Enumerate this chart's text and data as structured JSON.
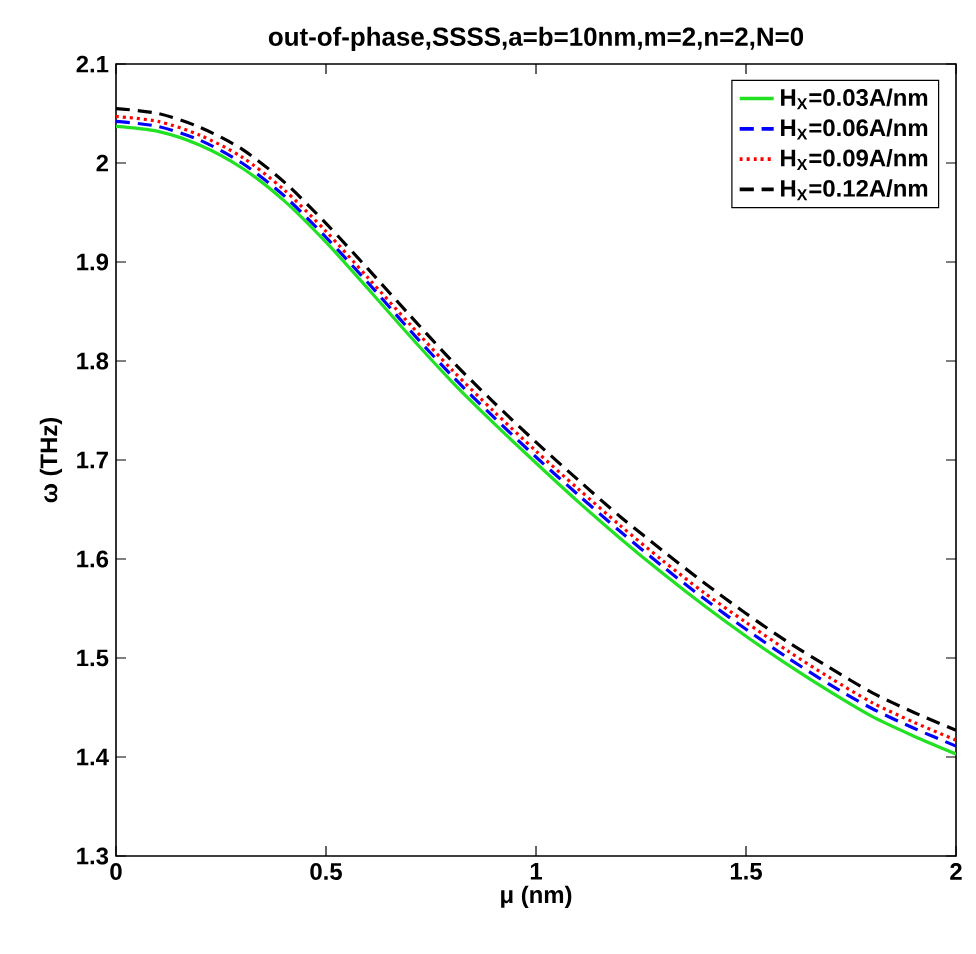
{
  "chart_data": {
    "type": "line",
    "title": "out-of-phase,SSSS,a=b=10nm,m=2,n=2,N=0",
    "xlabel": "μ (nm)",
    "ylabel": "ω (THz)",
    "x": [
      0,
      0.1,
      0.2,
      0.3,
      0.4,
      0.5,
      0.6,
      0.7,
      0.8,
      0.9,
      1.0,
      1.1,
      1.2,
      1.3,
      1.4,
      1.5,
      1.6,
      1.7,
      1.8,
      1.9,
      2.0
    ],
    "series": [
      {
        "name": "H$_{X}$=0.03A/nm",
        "color": "#22e022",
        "line_style": "solid",
        "values": [
          2.037,
          2.032,
          2.018,
          1.995,
          1.962,
          1.92,
          1.873,
          1.825,
          1.779,
          1.737,
          1.697,
          1.658,
          1.621,
          1.586,
          1.553,
          1.522,
          1.493,
          1.466,
          1.441,
          1.421,
          1.403
        ]
      },
      {
        "name": "H$_{X}$=0.06A/nm",
        "color": "#0000ff",
        "line_style": "dashed",
        "values": [
          2.042,
          2.037,
          2.023,
          2.0,
          1.967,
          1.925,
          1.879,
          1.831,
          1.785,
          1.743,
          1.703,
          1.665,
          1.628,
          1.593,
          1.56,
          1.529,
          1.5,
          1.473,
          1.449,
          1.429,
          1.411
        ]
      },
      {
        "name": "H$_{X}$=0.09A/nm",
        "color": "#ff0000",
        "line_style": "dotted",
        "values": [
          2.047,
          2.042,
          2.028,
          2.006,
          1.973,
          1.931,
          1.884,
          1.837,
          1.791,
          1.749,
          1.709,
          1.671,
          1.634,
          1.599,
          1.566,
          1.536,
          1.507,
          1.48,
          1.455,
          1.435,
          1.417
        ]
      },
      {
        "name": "H$_{X}$=0.12A/nm",
        "color": "#000000",
        "line_style": "dashed",
        "values": [
          2.055,
          2.05,
          2.036,
          2.014,
          1.981,
          1.939,
          1.893,
          1.846,
          1.8,
          1.758,
          1.718,
          1.68,
          1.643,
          1.609,
          1.576,
          1.545,
          1.516,
          1.49,
          1.465,
          1.445,
          1.427
        ]
      }
    ],
    "xlim": [
      0,
      2
    ],
    "ylim": [
      1.3,
      2.1
    ],
    "xticks": [
      0,
      0.5,
      1,
      1.5,
      2
    ],
    "yticks": [
      1.3,
      1.4,
      1.5,
      1.6,
      1.7,
      1.8,
      1.9,
      2,
      2.1
    ],
    "grid": false,
    "legend": "top right",
    "marker": "none"
  }
}
